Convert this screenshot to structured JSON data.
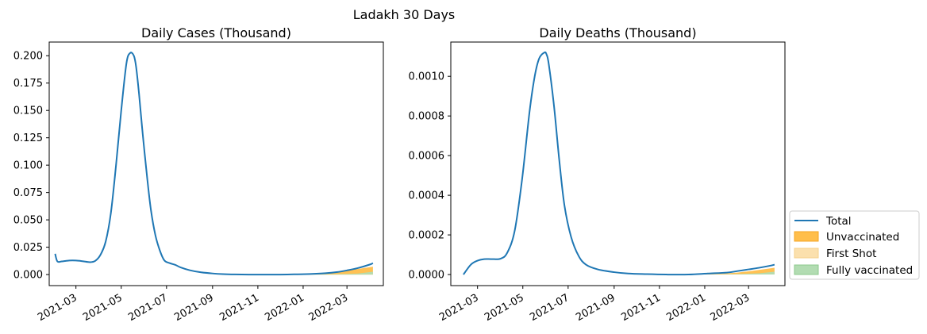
{
  "figure": {
    "title": "Ladakh 30 Days",
    "legend": {
      "placement": "outside-right-bottom",
      "entries": [
        {
          "label": "Total",
          "type": "line",
          "color": "#1f77b4"
        },
        {
          "label": "Unvaccinated",
          "type": "patch",
          "color": "#ffbe4b"
        },
        {
          "label": "First Shot",
          "type": "patch",
          "color": "#fbe0ad"
        },
        {
          "label": "Fully vaccinated",
          "type": "patch",
          "color": "#b2dcb2"
        }
      ]
    }
  },
  "chart_data": [
    {
      "type": "area",
      "title": "Daily Cases (Thousand)",
      "xlabel": "",
      "ylabel": "",
      "xlim": [
        "2021-01-24",
        "2022-04-19"
      ],
      "ylim": [
        -0.0101,
        0.2125
      ],
      "x_ticks": [
        "2021-03",
        "2021-05",
        "2021-07",
        "2021-09",
        "2021-11",
        "2022-01",
        "2022-03"
      ],
      "y_ticks": [
        "0.000",
        "0.025",
        "0.050",
        "0.075",
        "0.100",
        "0.125",
        "0.150",
        "0.175",
        "0.200"
      ],
      "grid": false,
      "series": [
        {
          "name": "Total",
          "type": "line",
          "color": "#1f77b4",
          "x": [
            "2021-02-01",
            "2021-02-04",
            "2021-02-10",
            "2021-02-20",
            "2021-03-01",
            "2021-03-10",
            "2021-03-20",
            "2021-03-27",
            "2021-04-03",
            "2021-04-10",
            "2021-04-17",
            "2021-04-24",
            "2021-05-01",
            "2021-05-08",
            "2021-05-13",
            "2021-05-18",
            "2021-05-21",
            "2021-05-25",
            "2021-05-30",
            "2021-06-05",
            "2021-06-10",
            "2021-06-16",
            "2021-06-22",
            "2021-06-28",
            "2021-07-05",
            "2021-07-13",
            "2021-07-20",
            "2021-08-01",
            "2021-08-15",
            "2021-09-01",
            "2021-09-15",
            "2021-10-01",
            "2021-10-20",
            "2021-11-10",
            "2021-12-01",
            "2021-12-20",
            "2022-01-10",
            "2022-01-31",
            "2022-02-15",
            "2022-03-01",
            "2022-03-15",
            "2022-04-01",
            "2022-04-05"
          ],
          "y": [
            0.019,
            0.012,
            0.012,
            0.0128,
            0.0128,
            0.0122,
            0.0113,
            0.0125,
            0.018,
            0.03,
            0.056,
            0.1,
            0.15,
            0.193,
            0.2025,
            0.2,
            0.19,
            0.165,
            0.128,
            0.088,
            0.059,
            0.036,
            0.022,
            0.013,
            0.0105,
            0.0088,
            0.0065,
            0.004,
            0.0022,
            0.001,
            0.0004,
            0.0001,
            0.0,
            0.0,
            0.0,
            0.0002,
            0.0005,
            0.0012,
            0.0022,
            0.0038,
            0.0058,
            0.0092,
            0.0105
          ]
        },
        {
          "name": "Unvaccinated",
          "type": "area",
          "color": "#ffbe4b",
          "x": [
            "2021-11-16",
            "2021-12-15",
            "2022-01-15",
            "2022-02-01",
            "2022-02-15",
            "2022-03-01",
            "2022-03-15",
            "2022-04-05"
          ],
          "y": [
            0.0,
            0.0002,
            0.0005,
            0.0012,
            0.0022,
            0.0036,
            0.005,
            0.0072
          ]
        },
        {
          "name": "First Shot",
          "type": "area",
          "color": "#fbe0ad",
          "x": [
            "2021-11-16",
            "2022-01-15",
            "2022-04-05"
          ],
          "y": [
            0.0,
            0.0,
            0.0004
          ]
        },
        {
          "name": "Fully vaccinated",
          "type": "area",
          "color": "#b2dcb2",
          "x": [
            "2021-11-16",
            "2022-01-15",
            "2022-02-15",
            "2022-03-15",
            "2022-04-05"
          ],
          "y": [
            0.0,
            0.0001,
            0.0003,
            0.0009,
            0.0026
          ]
        }
      ]
    },
    {
      "type": "area",
      "title": "Daily Deaths (Thousand)",
      "xlabel": "",
      "ylabel": "",
      "xlim": [
        "2021-01-24",
        "2022-04-19"
      ],
      "ylim": [
        -5.58e-05,
        0.0011729
      ],
      "x_ticks": [
        "2021-03",
        "2021-05",
        "2021-07",
        "2021-09",
        "2021-11",
        "2022-01",
        "2022-03"
      ],
      "y_ticks": [
        "0.0000",
        "0.0002",
        "0.0004",
        "0.0006",
        "0.0008",
        "0.0010"
      ],
      "grid": false,
      "series": [
        {
          "name": "Total",
          "type": "line",
          "color": "#1f77b4",
          "x": [
            "2021-02-10",
            "2021-02-20",
            "2021-03-01",
            "2021-03-10",
            "2021-03-20",
            "2021-04-01",
            "2021-04-10",
            "2021-04-20",
            "2021-04-30",
            "2021-05-10",
            "2021-05-17",
            "2021-05-23",
            "2021-05-30",
            "2021-06-02",
            "2021-06-05",
            "2021-06-12",
            "2021-06-19",
            "2021-06-26",
            "2021-07-05",
            "2021-07-15",
            "2021-07-25",
            "2021-08-10",
            "2021-09-01",
            "2021-09-20",
            "2021-10-15",
            "2021-11-10",
            "2021-12-10",
            "2022-01-05",
            "2022-01-31",
            "2022-02-15",
            "2022-03-01",
            "2022-03-15",
            "2022-04-01",
            "2022-04-05"
          ],
          "y": [
            0.0,
            5e-05,
            7e-05,
            7.8e-05,
            7.8e-05,
            8e-05,
            0.00011,
            0.00022,
            0.00048,
            0.00082,
            0.001,
            0.00109,
            0.00112,
            0.00111,
            0.00106,
            0.00085,
            0.00058,
            0.00035,
            0.00019,
            9.5e-05,
            5e-05,
            2.6e-05,
            1.2e-05,
            5e-06,
            2e-06,
            0.0,
            0.0,
            5e-06,
            1e-05,
            1.8e-05,
            2.6e-05,
            3.4e-05,
            4.6e-05,
            5e-05
          ]
        },
        {
          "name": "Unvaccinated",
          "type": "area",
          "color": "#ffbe4b",
          "x": [
            "2021-11-16",
            "2021-12-15",
            "2022-01-15",
            "2022-02-01",
            "2022-02-15",
            "2022-03-01",
            "2022-03-15",
            "2022-04-05"
          ],
          "y": [
            0.0,
            1e-06,
            3e-06,
            6e-06,
            1e-05,
            1.6e-05,
            2.3e-05,
            3.4e-05
          ]
        },
        {
          "name": "First Shot",
          "type": "area",
          "color": "#fbe0ad",
          "x": [
            "2021-11-16",
            "2022-01-15",
            "2022-04-05"
          ],
          "y": [
            0.0,
            0.0,
            2e-06
          ]
        },
        {
          "name": "Fully vaccinated",
          "type": "area",
          "color": "#b2dcb2",
          "x": [
            "2021-11-16",
            "2022-01-15",
            "2022-02-15",
            "2022-03-15",
            "2022-04-05"
          ],
          "y": [
            0.0,
            5e-07,
            2e-06,
            6e-06,
            1.4e-05
          ]
        }
      ]
    }
  ]
}
